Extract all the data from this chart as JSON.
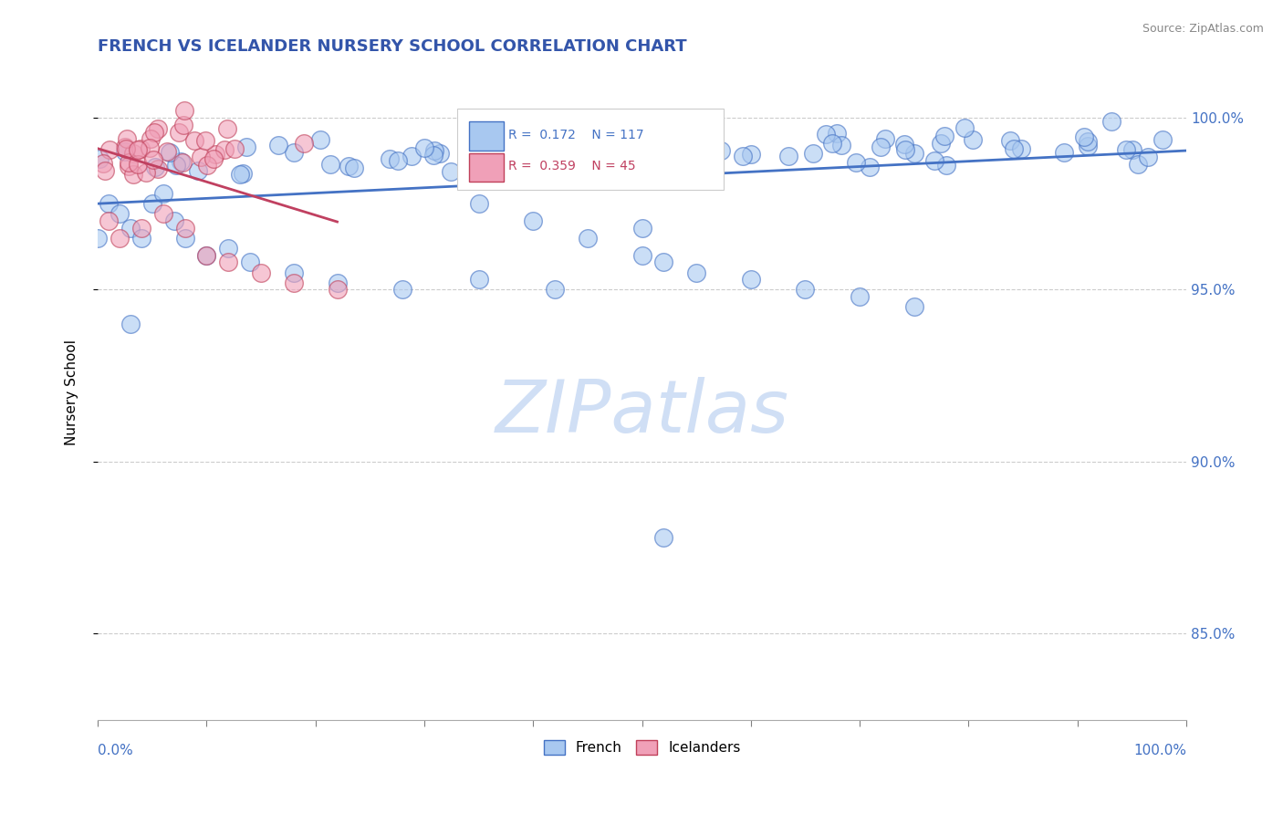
{
  "title": "FRENCH VS ICELANDER NURSERY SCHOOL CORRELATION CHART",
  "source": "Source: ZipAtlas.com",
  "ylabel": "Nursery School",
  "ytick_values": [
    0.85,
    0.9,
    0.95,
    1.0
  ],
  "ytick_labels": [
    "85.0%",
    "90.0%",
    "95.0%",
    "100.0%"
  ],
  "xlim": [
    0.0,
    1.0
  ],
  "ylim": [
    0.825,
    1.015
  ],
  "french_color": "#A8C8F0",
  "icelander_color": "#F0A0B8",
  "french_edge_color": "#4472C4",
  "icelander_edge_color": "#C0405A",
  "french_line_color": "#4472C4",
  "icelander_line_color": "#C04060",
  "R_french": 0.172,
  "N_french": 117,
  "R_icelander": 0.359,
  "N_icelander": 45,
  "watermark_color": "#D0DFF5",
  "title_color": "#3355AA",
  "axis_color": "#4472C4"
}
